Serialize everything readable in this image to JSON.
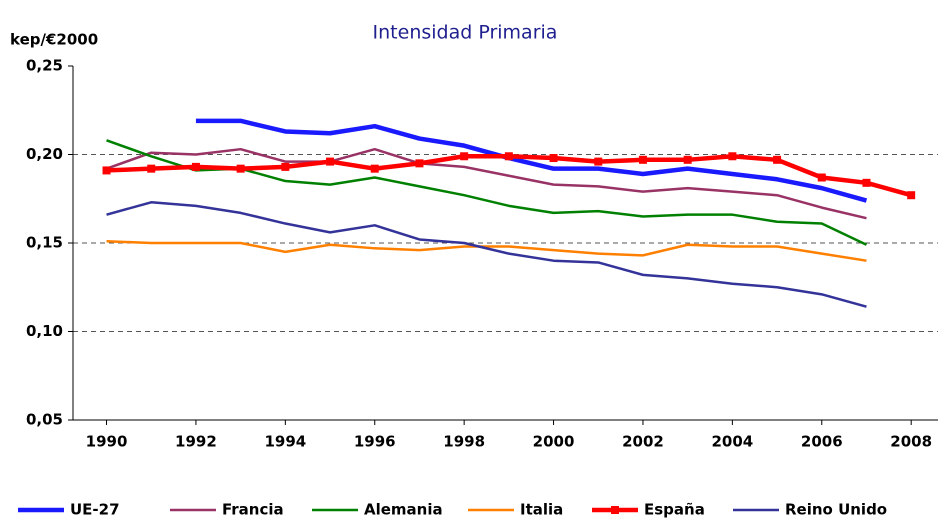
{
  "chart_data": {
    "type": "line",
    "title": "Intensidad Primaria",
    "y_label": "kep/€2000",
    "x": [
      1990,
      1991,
      1992,
      1993,
      1994,
      1995,
      1996,
      1997,
      1998,
      1999,
      2000,
      2001,
      2002,
      2003,
      2004,
      2005,
      2006,
      2007,
      2008
    ],
    "xlim": [
      1989.25,
      2008.6
    ],
    "xticks": [
      1990,
      1992,
      1994,
      1996,
      1998,
      2000,
      2002,
      2004,
      2006,
      2008
    ],
    "ylim": [
      0.05,
      0.25
    ],
    "yticks": [
      {
        "value": 0.05,
        "label": "0,05"
      },
      {
        "value": 0.1,
        "label": "0,10"
      },
      {
        "value": 0.15,
        "label": "0,15"
      },
      {
        "value": 0.2,
        "label": "0,20"
      },
      {
        "value": 0.25,
        "label": "0,25"
      }
    ],
    "grid": true,
    "legend": "bottom",
    "series": [
      {
        "name": "UE-27",
        "color": "#1a1aff",
        "line_width": 4.5,
        "values": [
          null,
          null,
          0.219,
          0.219,
          0.213,
          0.212,
          0.216,
          0.209,
          0.205,
          0.198,
          0.192,
          0.192,
          0.189,
          0.192,
          0.189,
          0.186,
          0.181,
          0.174,
          null
        ]
      },
      {
        "name": "Francia",
        "color": "#993366",
        "line_width": 2.5,
        "values": [
          0.192,
          0.201,
          0.2,
          0.203,
          0.196,
          0.196,
          0.203,
          0.195,
          0.193,
          0.188,
          0.183,
          0.182,
          0.179,
          0.181,
          0.179,
          0.177,
          0.17,
          0.164,
          null
        ]
      },
      {
        "name": "Alemania",
        "color": "#008000",
        "line_width": 2.5,
        "values": [
          0.208,
          0.199,
          0.191,
          0.192,
          0.185,
          0.183,
          0.187,
          0.182,
          0.177,
          0.171,
          0.167,
          0.168,
          0.165,
          0.166,
          0.166,
          0.162,
          0.161,
          0.149,
          null
        ]
      },
      {
        "name": "Italia",
        "color": "#ff8000",
        "line_width": 2.5,
        "values": [
          0.151,
          0.15,
          0.15,
          0.15,
          0.145,
          0.149,
          0.147,
          0.146,
          0.148,
          0.148,
          0.146,
          0.144,
          0.143,
          0.149,
          0.148,
          0.148,
          0.144,
          0.14,
          null
        ]
      },
      {
        "name": "España",
        "color": "#ff0000",
        "line_width": 4.5,
        "marker": "square",
        "values": [
          0.191,
          0.192,
          0.193,
          0.192,
          0.193,
          0.196,
          0.192,
          0.195,
          0.199,
          0.199,
          0.198,
          0.196,
          0.197,
          0.197,
          0.199,
          0.197,
          0.187,
          0.184,
          0.177
        ]
      },
      {
        "name": "Reino Unido",
        "color": "#333399",
        "line_width": 2.5,
        "values": [
          0.166,
          0.173,
          0.171,
          0.167,
          0.161,
          0.156,
          0.16,
          0.152,
          0.15,
          0.144,
          0.14,
          0.139,
          0.132,
          0.13,
          0.127,
          0.125,
          0.121,
          0.114,
          null
        ]
      }
    ]
  }
}
